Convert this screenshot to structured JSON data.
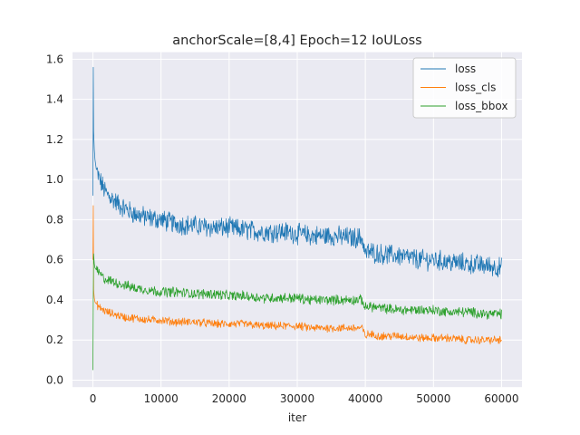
{
  "chart_data": {
    "type": "line",
    "title": "anchorScale=[8,4] Epoch=12 IoULoss",
    "xlabel": "iter",
    "ylabel": "",
    "xlim": [
      -3000,
      63000
    ],
    "ylim": [
      -0.035,
      1.635
    ],
    "x_ticks": [
      0,
      10000,
      20000,
      30000,
      40000,
      50000,
      60000
    ],
    "y_ticks": [
      0.0,
      0.2,
      0.4,
      0.6,
      0.8,
      1.0,
      1.2,
      1.4,
      1.6
    ],
    "y_tick_labels": [
      "0.0",
      "0.2",
      "0.4",
      "0.6",
      "0.8",
      "1.0",
      "1.2",
      "1.4",
      "1.6"
    ],
    "grid": true,
    "legend_position": "top-right",
    "x": [
      0,
      50,
      100,
      200,
      300,
      500,
      750,
      1000,
      1500,
      2000,
      3000,
      4000,
      5000,
      6000,
      8000,
      10000,
      12000,
      15000,
      18000,
      20000,
      22000,
      25000,
      28000,
      30000,
      32000,
      35000,
      38000,
      39500,
      40000,
      40500,
      42000,
      45000,
      48000,
      50000,
      52000,
      55000,
      58000,
      60000
    ],
    "series": [
      {
        "name": "loss",
        "color": "#1f77b4",
        "values": [
          0.92,
          1.56,
          1.24,
          1.15,
          1.1,
          1.05,
          1.02,
          1.0,
          0.96,
          0.93,
          0.9,
          0.87,
          0.85,
          0.83,
          0.81,
          0.8,
          0.78,
          0.77,
          0.76,
          0.76,
          0.75,
          0.74,
          0.74,
          0.73,
          0.72,
          0.72,
          0.71,
          0.71,
          0.63,
          0.64,
          0.63,
          0.62,
          0.6,
          0.6,
          0.59,
          0.58,
          0.57,
          0.56
        ]
      },
      {
        "name": "loss_cls",
        "color": "#ff7f0e",
        "values": [
          0.6,
          0.87,
          0.45,
          0.41,
          0.39,
          0.38,
          0.37,
          0.36,
          0.35,
          0.34,
          0.33,
          0.32,
          0.31,
          0.31,
          0.3,
          0.3,
          0.29,
          0.29,
          0.28,
          0.28,
          0.28,
          0.27,
          0.27,
          0.27,
          0.26,
          0.26,
          0.26,
          0.26,
          0.22,
          0.23,
          0.22,
          0.22,
          0.21,
          0.21,
          0.21,
          0.2,
          0.2,
          0.2
        ]
      },
      {
        "name": "loss_bbox",
        "color": "#2ca02c",
        "values": [
          0.05,
          0.44,
          0.63,
          0.58,
          0.56,
          0.55,
          0.54,
          0.53,
          0.51,
          0.5,
          0.49,
          0.48,
          0.47,
          0.46,
          0.45,
          0.44,
          0.44,
          0.43,
          0.43,
          0.42,
          0.42,
          0.41,
          0.41,
          0.41,
          0.4,
          0.4,
          0.4,
          0.4,
          0.36,
          0.37,
          0.36,
          0.35,
          0.35,
          0.35,
          0.34,
          0.34,
          0.33,
          0.33
        ]
      }
    ]
  },
  "style": {
    "plot_background": "#eaeaf2",
    "grid_color": "#ffffff",
    "text_color": "#262626",
    "legend_background": "#ffffff",
    "legend_border": "#cccccc"
  }
}
